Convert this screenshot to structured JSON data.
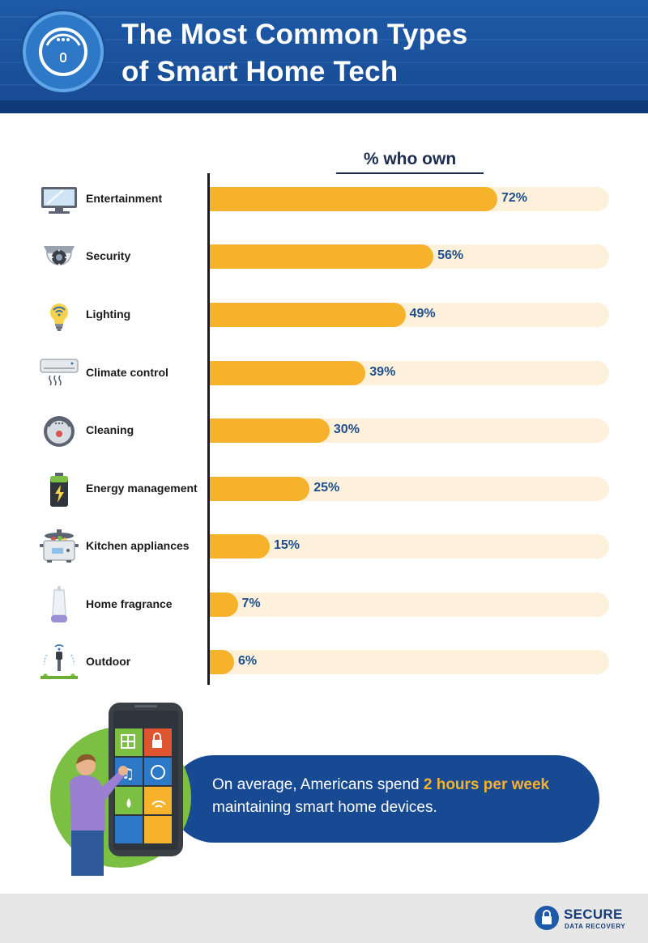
{
  "header": {
    "title_line1": "The Most Common Types",
    "title_line2": "of Smart Home Tech"
  },
  "chart_data": {
    "type": "bar",
    "orientation": "horizontal",
    "title": "% who own",
    "categories": [
      "Entertainment",
      "Security",
      "Lighting",
      "Climate control",
      "Cleaning",
      "Energy management",
      "Kitchen appliances",
      "Home fragrance",
      "Outdoor"
    ],
    "values": [
      72,
      56,
      49,
      39,
      30,
      25,
      15,
      7,
      6
    ],
    "value_labels": [
      "72%",
      "56%",
      "49%",
      "39%",
      "30%",
      "25%",
      "15%",
      "7%",
      "6%"
    ],
    "icons": [
      "tv-icon",
      "security-camera-icon",
      "smart-bulb-icon",
      "air-conditioner-icon",
      "robot-vacuum-icon",
      "battery-icon",
      "slow-cooker-icon",
      "diffuser-icon",
      "sprinkler-icon"
    ],
    "xlim": [
      0,
      100
    ],
    "grid": false,
    "colors": {
      "bar": "#f6b22b",
      "track": "#fdf1dc",
      "value": "#1f4e8c"
    }
  },
  "callout": {
    "text_before": "On average, Americans spend ",
    "highlight": "2 hours per week",
    "text_after": " maintaining smart home devices."
  },
  "footer": {
    "brand_name": "SECURE",
    "brand_sub": "DATA RECOVERY"
  },
  "colors": {
    "header": "#1e5aa8",
    "accent": "#f6b22b",
    "green": "#7cc043"
  }
}
